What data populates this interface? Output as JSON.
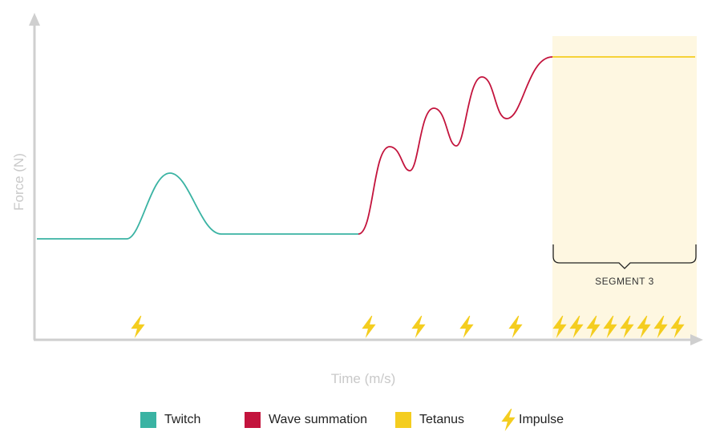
{
  "axes": {
    "xlabel": "Time (m/s)",
    "ylabel": "Force (N)",
    "color": "#cfcfcf"
  },
  "segment": {
    "label": "SEGMENT 3",
    "fill": "#fef7e1"
  },
  "colors": {
    "twitch": "#3ab3a3",
    "summation": "#c3143d",
    "tetanus": "#f4cd1f",
    "impulse": "#f4cd1f"
  },
  "legend": {
    "twitch": "Twitch",
    "summation": "Wave summation",
    "tetanus": "Tetanus",
    "impulse": "Impulse"
  }
}
